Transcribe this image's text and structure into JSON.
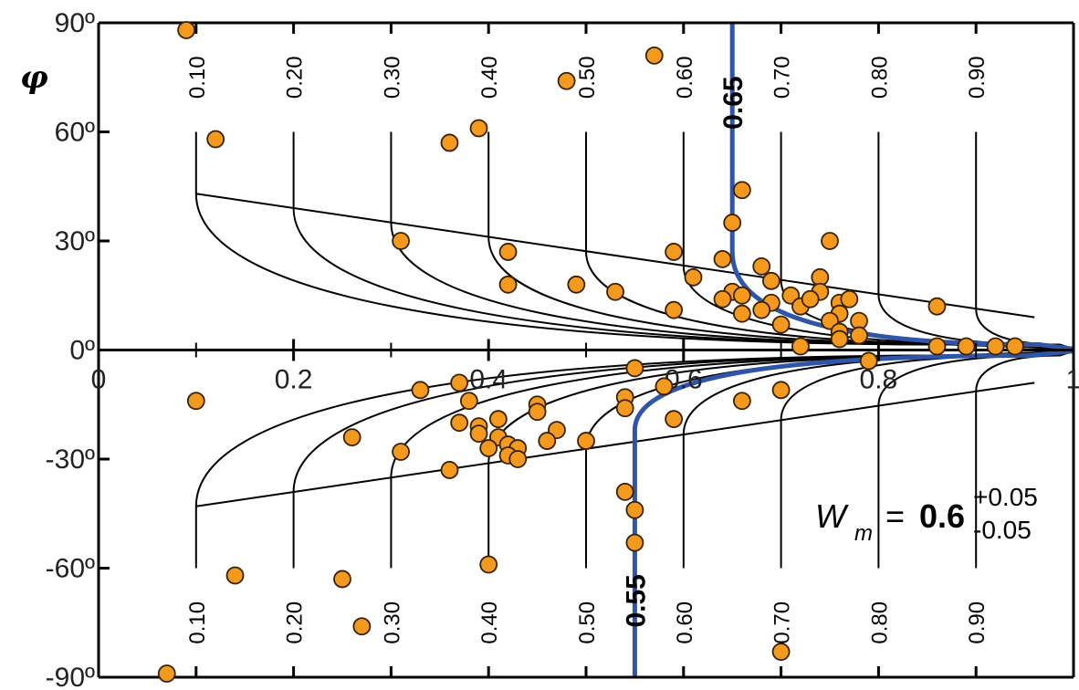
{
  "chart_data": {
    "type": "scatter",
    "title": "",
    "xlabel": "",
    "ylabel": "φ",
    "xlim": [
      0,
      1
    ],
    "ylim": [
      -90,
      90
    ],
    "x_ticks": [
      "0",
      "0.2",
      "0.4",
      "0.6",
      "0.8",
      "1"
    ],
    "y_ticks": [
      "90º",
      "60º",
      "30º",
      "0º",
      "-30º",
      "-60º",
      "-90º"
    ],
    "contour_levels_upper": [
      "0.10",
      "0.20",
      "0.30",
      "0.40",
      "0.50",
      "0.60",
      "0.70",
      "0.80",
      "0.90"
    ],
    "contour_levels_lower": [
      "0.10",
      "0.20",
      "0.30",
      "0.40",
      "0.50",
      "0.60",
      "0.70",
      "0.80",
      "0.90"
    ],
    "highlight_upper": {
      "label": "0.65",
      "x": 0.65,
      "color": "#2f55a8"
    },
    "highlight_lower": {
      "label": "0.55",
      "x": 0.55,
      "color": "#2f55a8"
    },
    "annotation": {
      "var": "W",
      "sub": "m",
      "eq": "=",
      "value": "0.6",
      "plus": "+0.05",
      "minus": "-0.05"
    },
    "marker_color": "#f39a1e",
    "points": [
      {
        "x": 0.09,
        "y": 88
      },
      {
        "x": 0.57,
        "y": 81
      },
      {
        "x": 0.48,
        "y": 74
      },
      {
        "x": 0.12,
        "y": 58
      },
      {
        "x": 0.36,
        "y": 57
      },
      {
        "x": 0.39,
        "y": 61
      },
      {
        "x": 0.66,
        "y": 44
      },
      {
        "x": 0.65,
        "y": 35
      },
      {
        "x": 0.31,
        "y": 30
      },
      {
        "x": 0.42,
        "y": 27
      },
      {
        "x": 0.59,
        "y": 27
      },
      {
        "x": 0.64,
        "y": 25
      },
      {
        "x": 0.75,
        "y": 30
      },
      {
        "x": 0.68,
        "y": 23
      },
      {
        "x": 0.61,
        "y": 20
      },
      {
        "x": 0.69,
        "y": 19
      },
      {
        "x": 0.74,
        "y": 20
      },
      {
        "x": 0.42,
        "y": 18
      },
      {
        "x": 0.49,
        "y": 18
      },
      {
        "x": 0.53,
        "y": 16
      },
      {
        "x": 0.65,
        "y": 16
      },
      {
        "x": 0.74,
        "y": 16
      },
      {
        "x": 0.64,
        "y": 14
      },
      {
        "x": 0.66,
        "y": 15
      },
      {
        "x": 0.71,
        "y": 15
      },
      {
        "x": 0.69,
        "y": 13
      },
      {
        "x": 0.72,
        "y": 12
      },
      {
        "x": 0.76,
        "y": 13
      },
      {
        "x": 0.77,
        "y": 14
      },
      {
        "x": 0.73,
        "y": 14
      },
      {
        "x": 0.86,
        "y": 12
      },
      {
        "x": 0.59,
        "y": 11
      },
      {
        "x": 0.68,
        "y": 11
      },
      {
        "x": 0.66,
        "y": 10
      },
      {
        "x": 0.76,
        "y": 10
      },
      {
        "x": 0.78,
        "y": 8
      },
      {
        "x": 0.75,
        "y": 8
      },
      {
        "x": 0.7,
        "y": 7
      },
      {
        "x": 0.76,
        "y": 5
      },
      {
        "x": 0.78,
        "y": 4
      },
      {
        "x": 0.76,
        "y": 3
      },
      {
        "x": 0.72,
        "y": 1
      },
      {
        "x": 0.86,
        "y": 1
      },
      {
        "x": 0.89,
        "y": 1
      },
      {
        "x": 0.92,
        "y": 1
      },
      {
        "x": 0.94,
        "y": 1
      },
      {
        "x": 0.79,
        "y": -3
      },
      {
        "x": 0.55,
        "y": -5
      },
      {
        "x": 0.37,
        "y": -9
      },
      {
        "x": 0.33,
        "y": -11
      },
      {
        "x": 0.58,
        "y": -10
      },
      {
        "x": 0.7,
        "y": -11
      },
      {
        "x": 0.1,
        "y": -14
      },
      {
        "x": 0.38,
        "y": -14
      },
      {
        "x": 0.54,
        "y": -13
      },
      {
        "x": 0.54,
        "y": -16
      },
      {
        "x": 0.66,
        "y": -14
      },
      {
        "x": 0.45,
        "y": -15
      },
      {
        "x": 0.45,
        "y": -17
      },
      {
        "x": 0.59,
        "y": -19
      },
      {
        "x": 0.37,
        "y": -20
      },
      {
        "x": 0.39,
        "y": -21
      },
      {
        "x": 0.41,
        "y": -19
      },
      {
        "x": 0.39,
        "y": -23
      },
      {
        "x": 0.47,
        "y": -22
      },
      {
        "x": 0.46,
        "y": -25
      },
      {
        "x": 0.41,
        "y": -24
      },
      {
        "x": 0.4,
        "y": -27
      },
      {
        "x": 0.42,
        "y": -26
      },
      {
        "x": 0.43,
        "y": -27
      },
      {
        "x": 0.42,
        "y": -29
      },
      {
        "x": 0.43,
        "y": -30
      },
      {
        "x": 0.5,
        "y": -25
      },
      {
        "x": 0.26,
        "y": -24
      },
      {
        "x": 0.31,
        "y": -28
      },
      {
        "x": 0.36,
        "y": -33
      },
      {
        "x": 0.54,
        "y": -39
      },
      {
        "x": 0.55,
        "y": -44
      },
      {
        "x": 0.55,
        "y": -53
      },
      {
        "x": 0.4,
        "y": -59
      },
      {
        "x": 0.14,
        "y": -62
      },
      {
        "x": 0.25,
        "y": -63
      },
      {
        "x": 0.27,
        "y": -76
      },
      {
        "x": 0.7,
        "y": -83
      },
      {
        "x": 0.07,
        "y": -89
      }
    ]
  }
}
